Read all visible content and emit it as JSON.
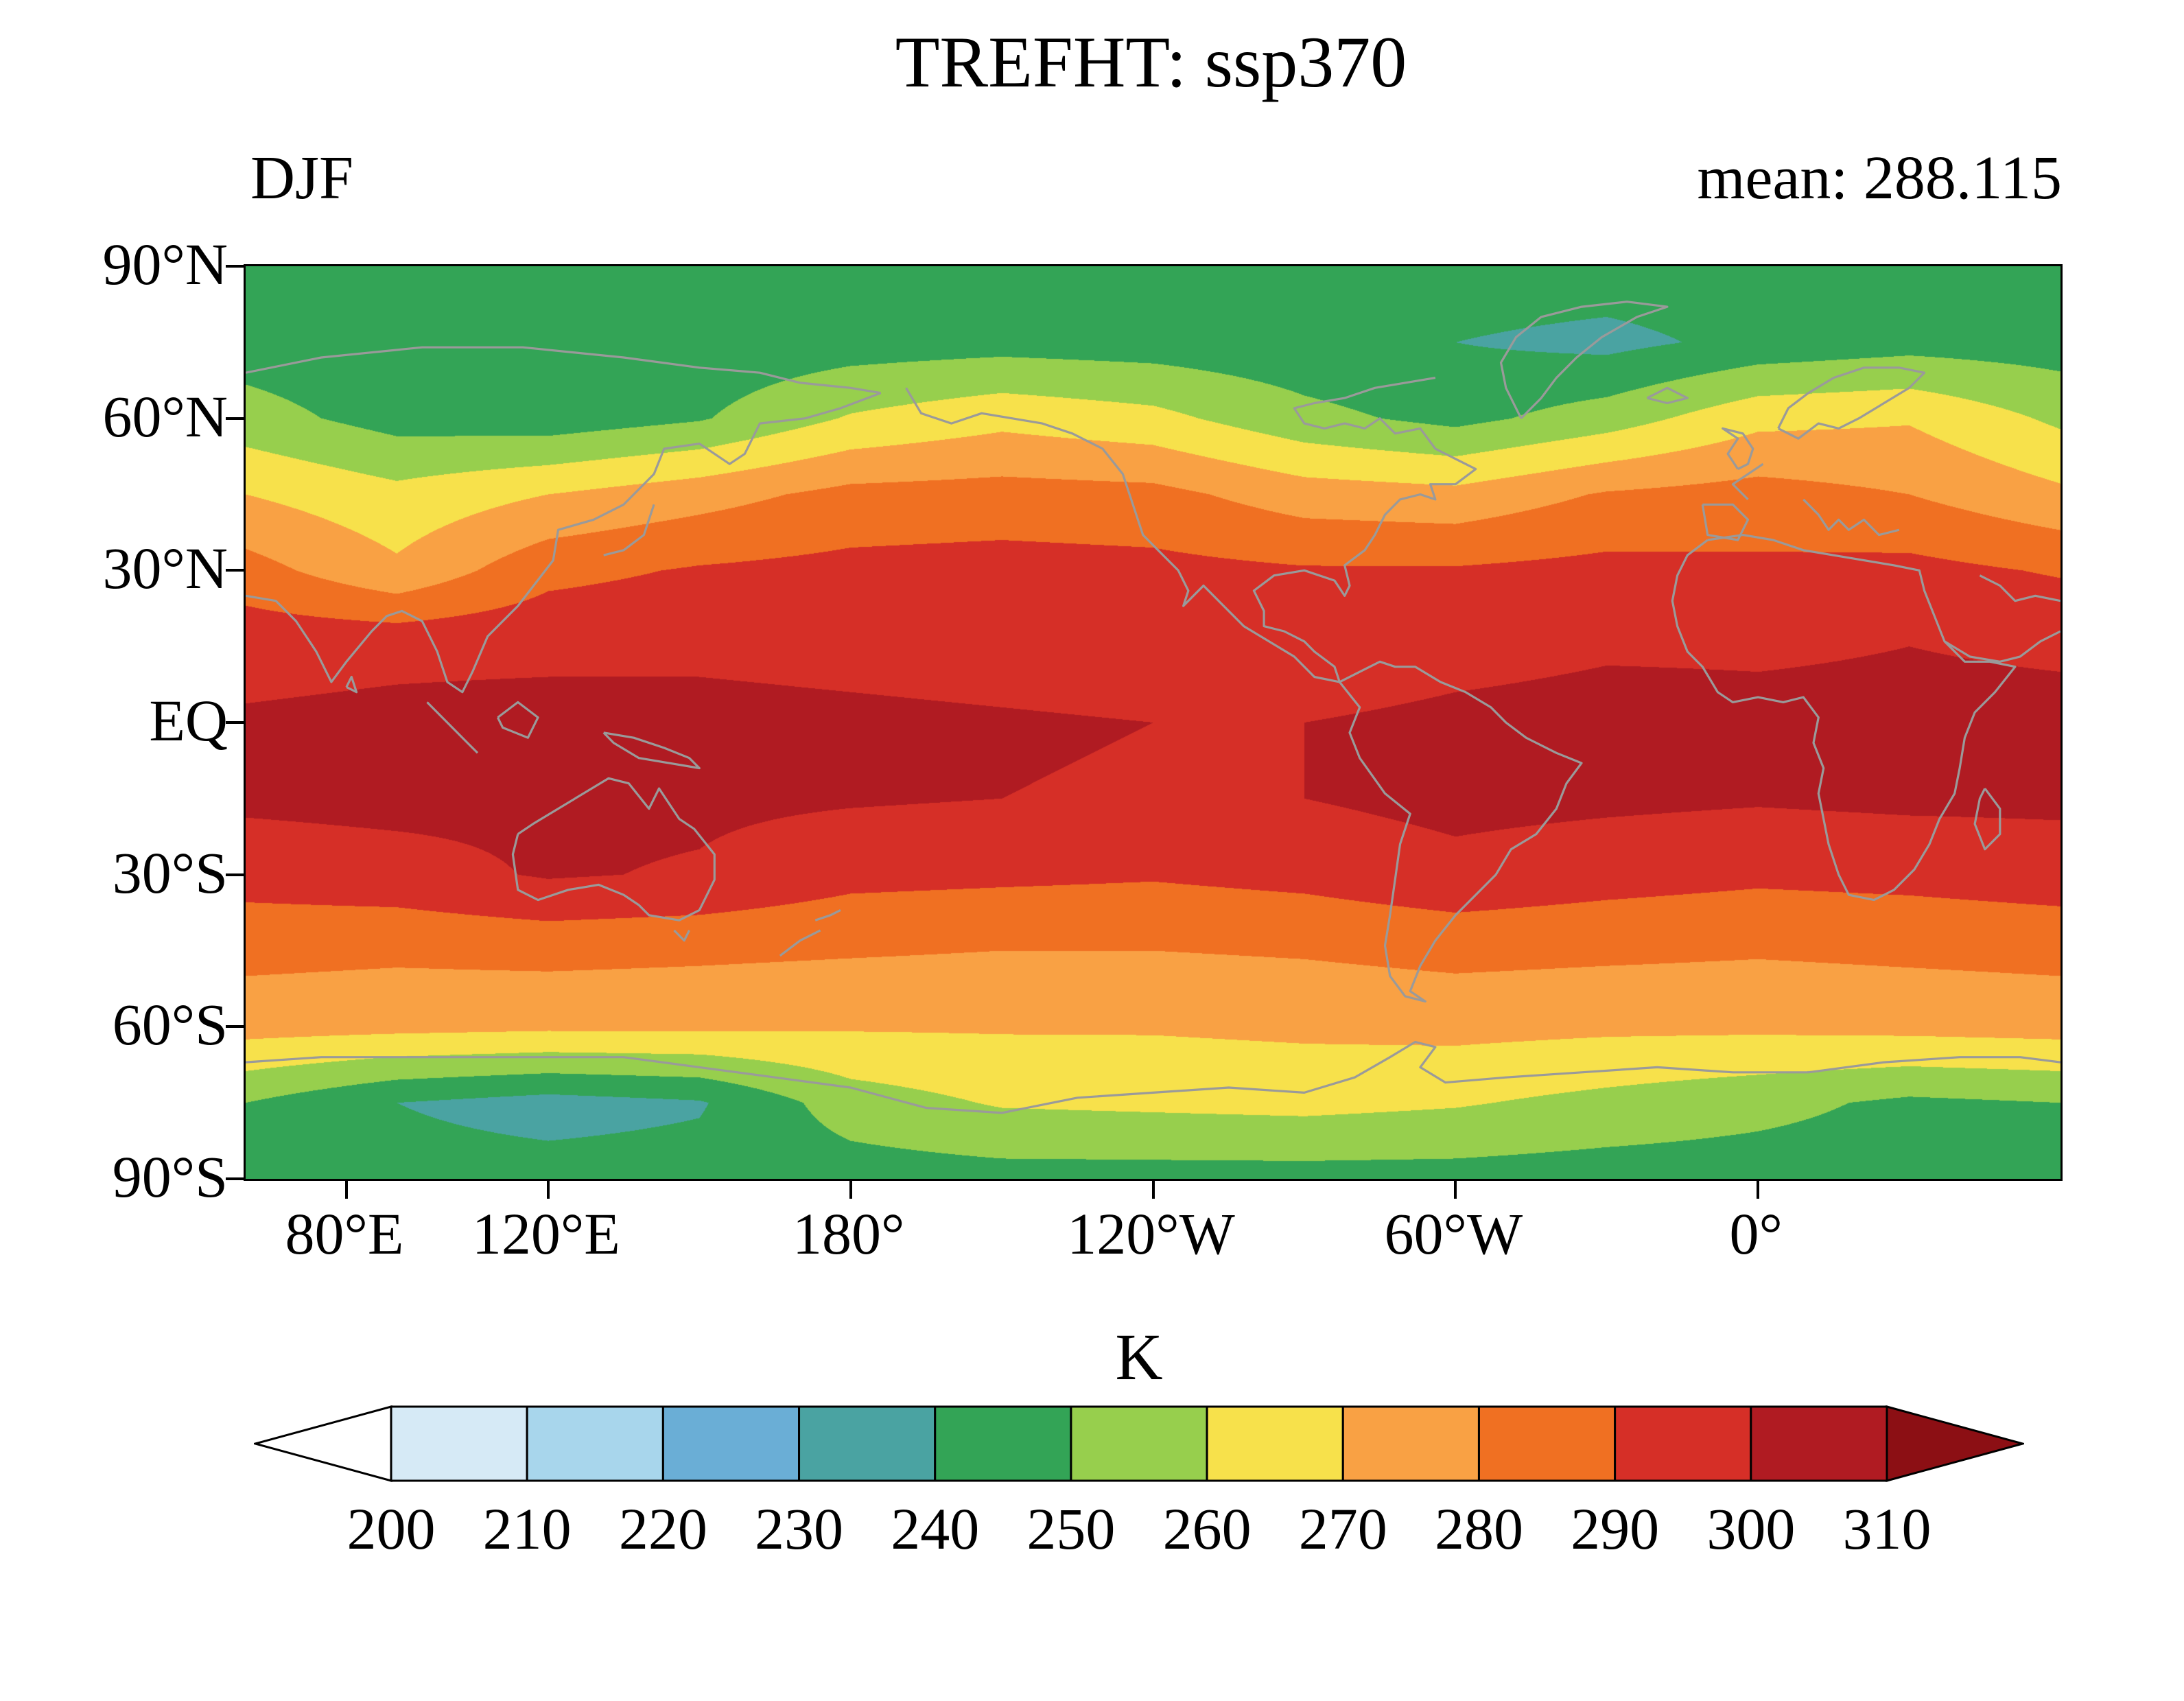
{
  "figure": {
    "title": "TREFHT: ssp370",
    "season_label": "DJF",
    "mean_label": "mean: 288.115",
    "colorbar_label": "K"
  },
  "axes": {
    "y_ticks": [
      {
        "label": "90°N",
        "lat": 90
      },
      {
        "label": "60°N",
        "lat": 60
      },
      {
        "label": "30°N",
        "lat": 30
      },
      {
        "label": "EQ",
        "lat": 0
      },
      {
        "label": "30°S",
        "lat": -30
      },
      {
        "label": "60°S",
        "lat": -60
      },
      {
        "label": "90°S",
        "lat": -90
      }
    ],
    "x_ticks": [
      {
        "label": "80°E",
        "lon_e": 80
      },
      {
        "label": "120°E",
        "lon_e": 120
      },
      {
        "label": "180°",
        "lon_e": 180
      },
      {
        "label": "120°W",
        "lon_e": 240
      },
      {
        "label": "60°W",
        "lon_e": 300
      },
      {
        "label": "0°",
        "lon_e": 360
      }
    ]
  },
  "colorbar": {
    "tick_labels": [
      "200",
      "210",
      "220",
      "230",
      "240",
      "250",
      "260",
      "270",
      "280",
      "290",
      "300",
      "310"
    ]
  },
  "chart_data": {
    "type": "heatmap",
    "variable": "TREFHT",
    "scenario": "ssp370",
    "season": "DJF",
    "title": "TREFHT: ssp370",
    "mean": 288.115,
    "units": "K",
    "levels": [
      200,
      210,
      220,
      230,
      240,
      250,
      260,
      270,
      280,
      290,
      300,
      310
    ],
    "level_colors": [
      "#ffffff",
      "#d6eaf6",
      "#a8d6ec",
      "#6aaed6",
      "#4aa3a2",
      "#33a456",
      "#97cf4d",
      "#f7e14b",
      "#f9a144",
      "#f07022",
      "#d62f27",
      "#b01b22",
      "#8c0f14"
    ],
    "coastline_color": "#9a9a9a",
    "lon_range": [
      60,
      420
    ],
    "lat_range": [
      -90,
      90
    ],
    "lats": [
      90,
      75,
      60,
      45,
      30,
      15,
      0,
      -15,
      -30,
      -45,
      -60,
      -75,
      -90
    ],
    "lons": [
      60,
      90,
      120,
      150,
      180,
      210,
      240,
      270,
      300,
      330,
      360,
      390,
      420
    ],
    "values": [
      [
        246,
        246,
        246,
        246,
        246,
        246,
        246,
        246,
        246,
        246,
        246,
        246,
        246
      ],
      [
        245,
        243,
        242,
        243,
        245,
        246,
        245,
        243,
        240,
        237,
        243,
        246,
        245
      ],
      [
        254,
        246,
        244,
        249,
        261,
        267,
        263,
        253,
        247,
        255,
        267,
        269,
        258
      ],
      [
        270,
        263,
        270,
        276,
        283,
        284,
        283,
        275,
        273,
        281,
        284,
        280,
        272
      ],
      [
        284,
        272,
        287,
        291,
        293,
        294,
        293,
        291,
        291,
        293,
        292,
        293,
        289
      ],
      [
        297,
        298,
        298,
        298,
        297,
        296,
        295,
        294,
        297,
        299,
        299,
        300,
        299
      ],
      [
        301,
        302,
        303,
        303,
        302,
        301,
        300,
        300,
        302,
        303,
        302,
        302,
        302
      ],
      [
        302,
        303,
        302,
        302,
        301,
        300,
        299,
        300,
        303,
        302,
        301,
        302,
        302
      ],
      [
        294,
        296,
        301,
        299,
        293,
        292,
        291,
        293,
        297,
        294,
        292,
        293,
        295
      ],
      [
        283,
        282,
        283,
        282,
        281,
        280,
        280,
        281,
        283,
        282,
        281,
        282,
        283
      ],
      [
        274,
        273,
        272,
        272,
        271,
        271,
        271,
        272,
        273,
        272,
        272,
        273,
        274
      ],
      [
        250,
        240,
        236,
        239,
        255,
        261,
        262,
        263,
        261,
        257,
        253,
        248,
        250
      ],
      [
        245,
        244,
        244,
        244,
        245,
        246,
        246,
        246,
        246,
        245,
        245,
        245,
        245
      ]
    ]
  }
}
